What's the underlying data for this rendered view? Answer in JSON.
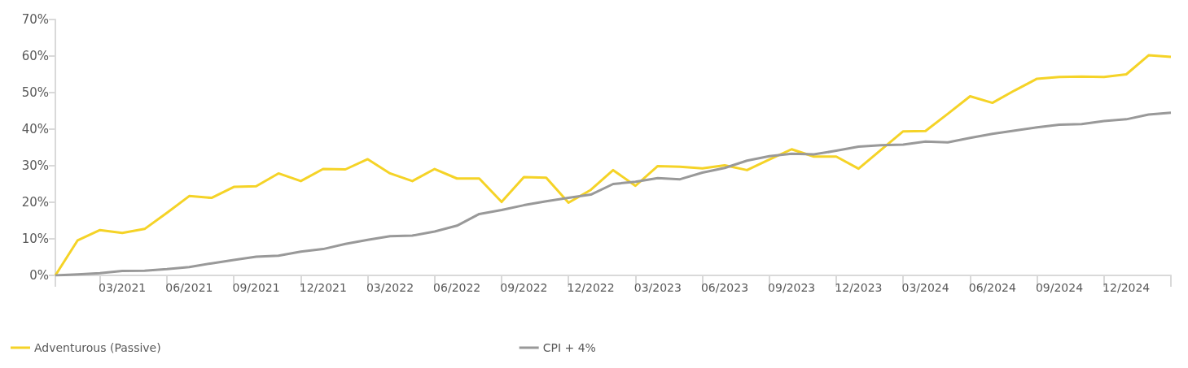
{
  "chart_data": {
    "type": "line",
    "categories": [
      null,
      null,
      null,
      "03/2021",
      null,
      null,
      "06/2021",
      null,
      null,
      "09/2021",
      null,
      null,
      "12/2021",
      null,
      null,
      "03/2022",
      null,
      null,
      "06/2022",
      null,
      null,
      "09/2022",
      null,
      null,
      "12/2022",
      null,
      null,
      "03/2023",
      null,
      null,
      "06/2023",
      null,
      null,
      "09/2023",
      null,
      null,
      "12/2023",
      null,
      null,
      "03/2024",
      null,
      null,
      "06/2024",
      null,
      null,
      "09/2024",
      null,
      null,
      "12/2024",
      null,
      null
    ],
    "series": [
      {
        "name": "Adventurous (Passive)",
        "color": "#f5d327",
        "values": [
          0,
          9.6,
          12.4,
          11.6,
          12.7,
          17.1,
          21.7,
          21.2,
          24.2,
          24.4,
          27.9,
          25.8,
          29.1,
          29.0,
          31.8,
          27.9,
          25.8,
          29.1,
          26.5,
          26.5,
          20.1,
          26.9,
          26.7,
          19.9,
          23.4,
          28.8,
          24.5,
          29.9,
          29.7,
          29.3,
          30.1,
          28.8,
          31.7,
          34.5,
          32.5,
          32.5,
          29.2,
          34.3,
          39.4,
          39.5,
          44.2,
          49.0,
          47.2,
          50.6,
          53.8,
          54.3,
          54.4,
          54.3,
          55.0,
          60.2,
          59.8
        ]
      },
      {
        "name": "CPI + 4%",
        "color": "#999999",
        "values": [
          0,
          0.3,
          0.6,
          1.2,
          1.3,
          1.7,
          2.3,
          3.3,
          4.2,
          5.1,
          5.4,
          6.5,
          7.2,
          8.6,
          9.7,
          10.7,
          10.9,
          12.0,
          13.6,
          16.8,
          17.9,
          19.2,
          20.3,
          21.2,
          22.1,
          25.0,
          25.6,
          26.6,
          26.3,
          28.1,
          29.4,
          31.4,
          32.6,
          33.3,
          33.1,
          34.1,
          35.2,
          35.6,
          35.8,
          36.6,
          36.4,
          37.6,
          38.7,
          39.6,
          40.5,
          41.2,
          41.4,
          42.2,
          42.7,
          44.0,
          44.5
        ]
      }
    ],
    "ylim": [
      0,
      70
    ],
    "yticks": [
      {
        "value": 0,
        "label": "0%"
      },
      {
        "value": 10,
        "label": "10%"
      },
      {
        "value": 20,
        "label": "20%"
      },
      {
        "value": 30,
        "label": "30%"
      },
      {
        "value": 40,
        "label": "40%"
      },
      {
        "value": 50,
        "label": "50%"
      },
      {
        "value": 60,
        "label": "60%"
      },
      {
        "value": 70,
        "label": "70%"
      }
    ],
    "grid": false,
    "legend": "bottom left",
    "marker": "none",
    "line_style": "solid"
  }
}
